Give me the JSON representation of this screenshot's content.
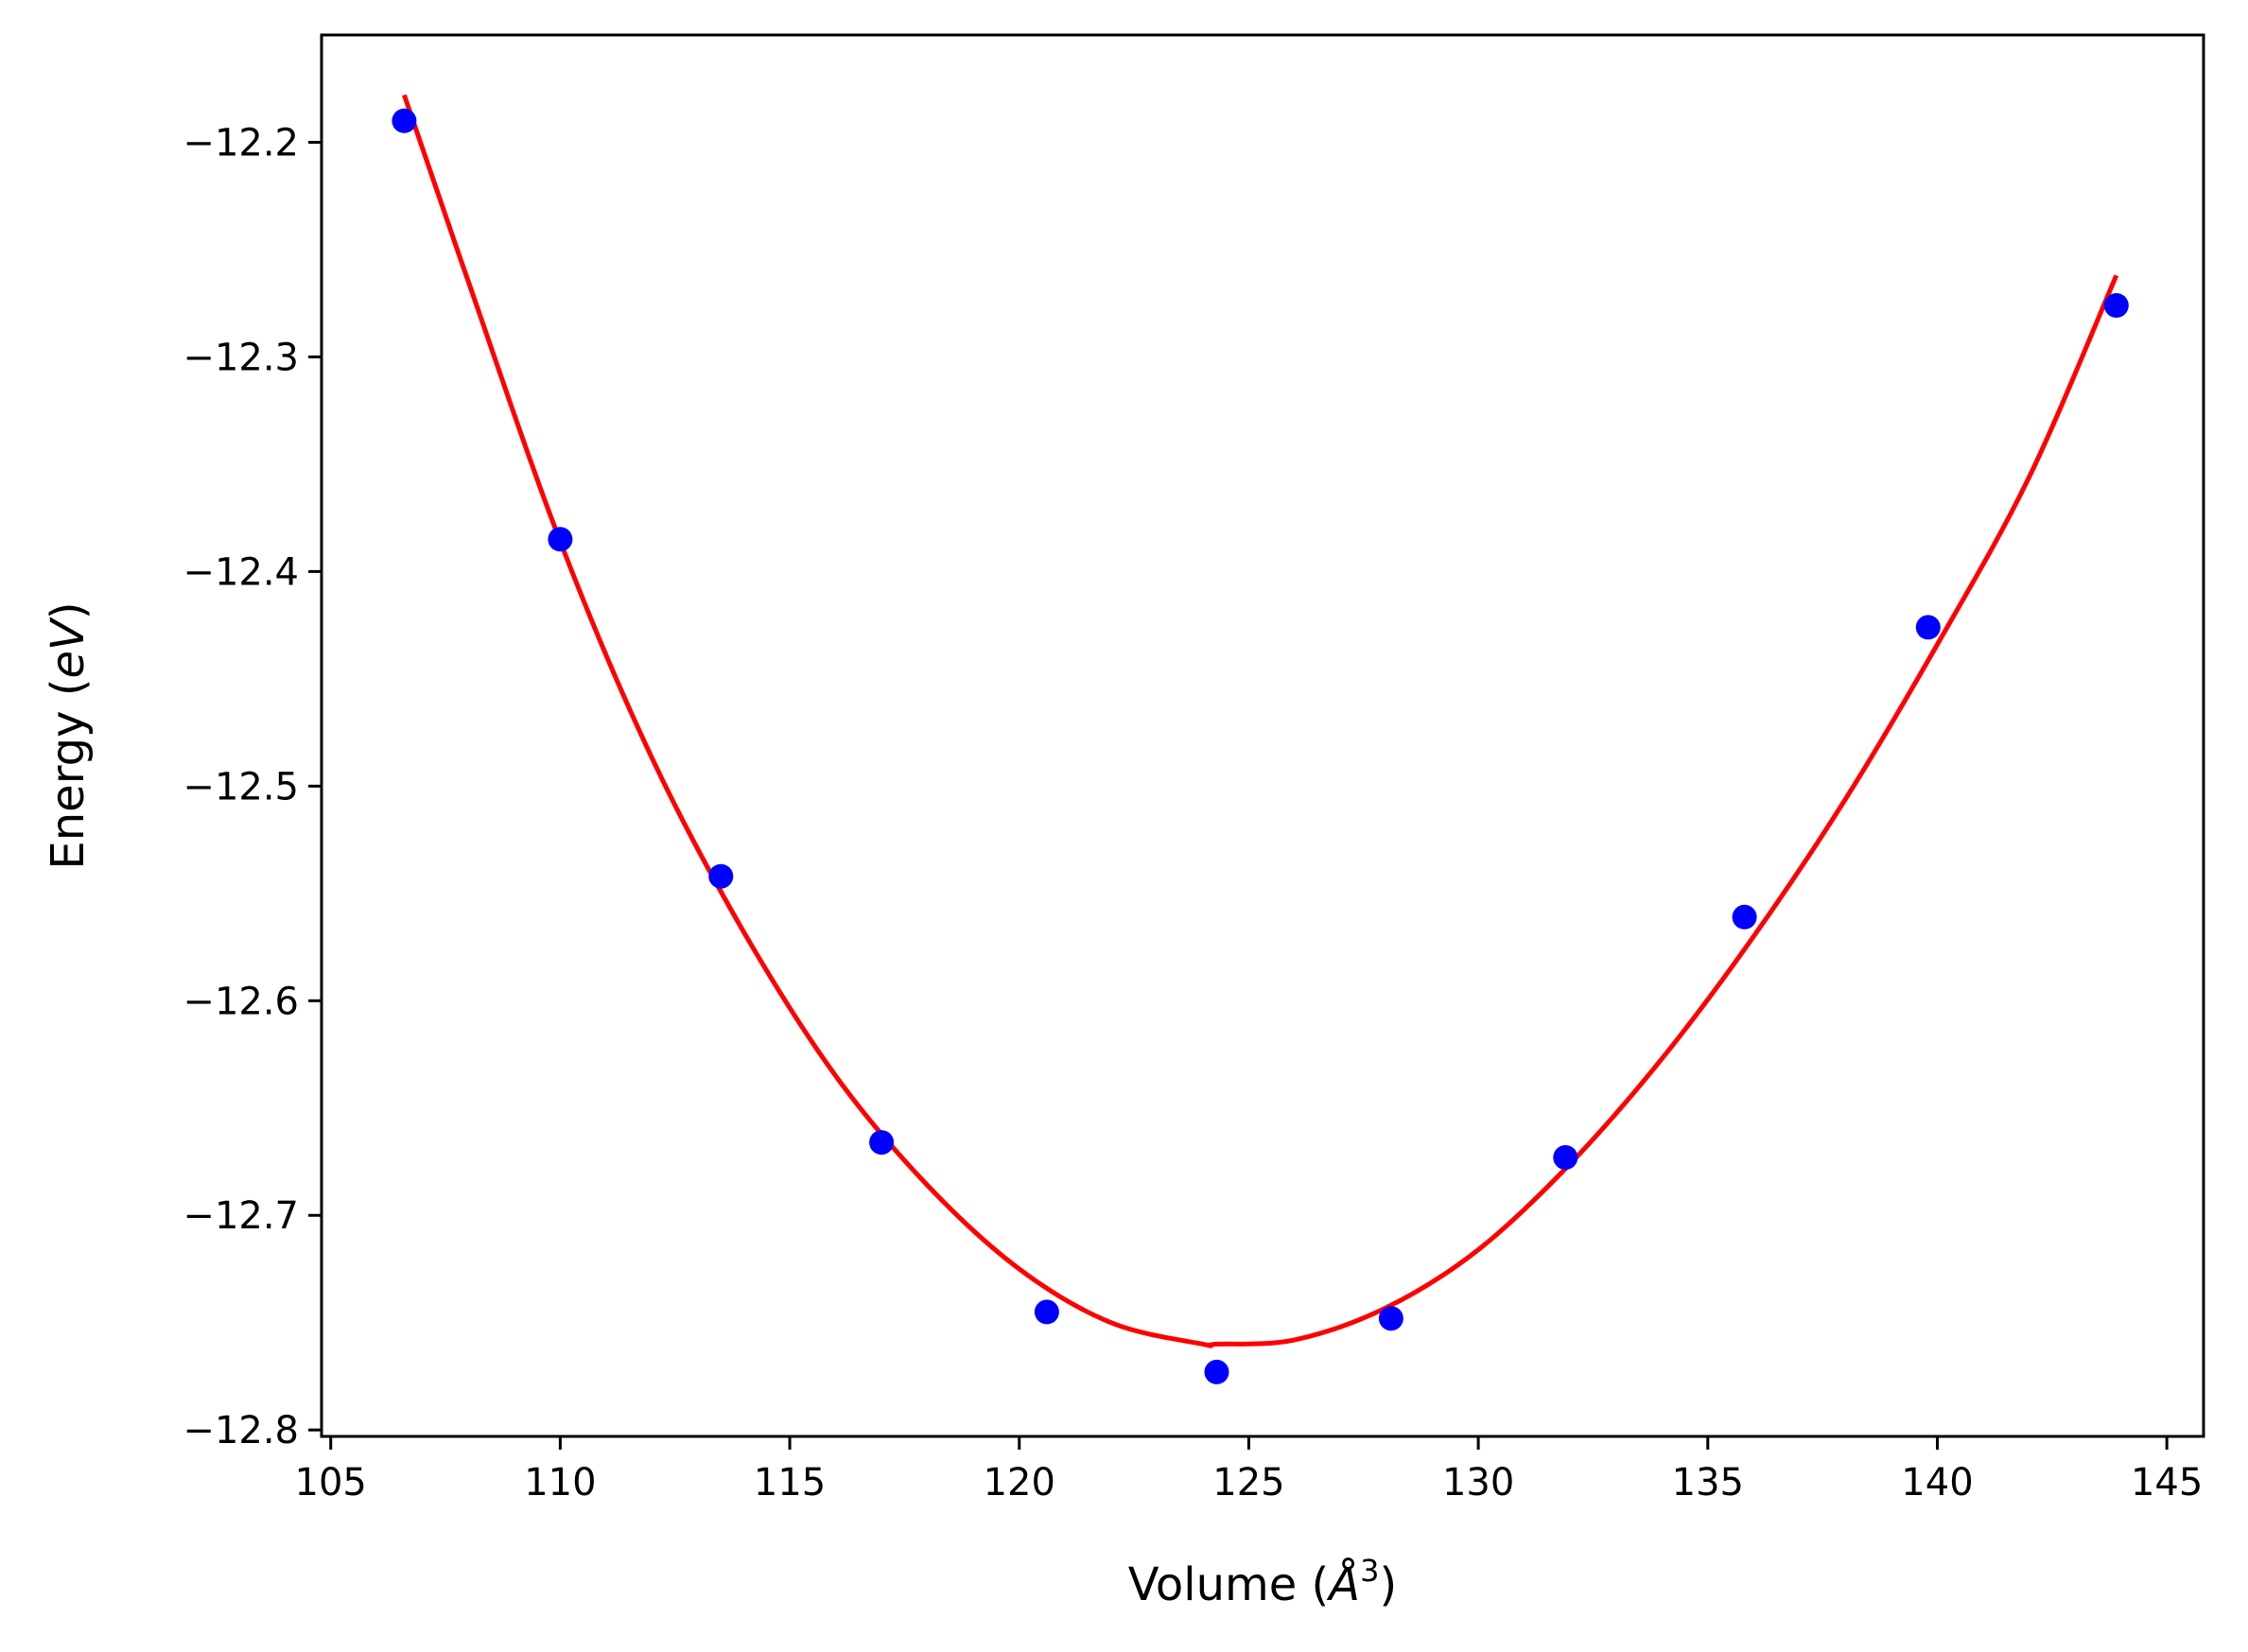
{
  "chart_data": {
    "type": "scatter",
    "xlabel": "Volume (Å³)",
    "xlabel_parts": {
      "prefix": "Volume (",
      "unit_symbol": "Å",
      "unit_power": "3",
      "suffix": ")"
    },
    "ylabel": "Energy (eV)",
    "ylabel_parts": {
      "prefix": "Energy (",
      "unit": "eV",
      "suffix": ")"
    },
    "xlim": [
      104.8,
      145.8
    ],
    "ylim": [
      -12.803,
      -12.15
    ],
    "xticks": [
      105,
      110,
      115,
      120,
      125,
      130,
      135,
      140,
      145
    ],
    "xtick_labels": [
      "105",
      "110",
      "115",
      "120",
      "125",
      "130",
      "135",
      "140",
      "145"
    ],
    "yticks": [
      -12.2,
      -12.3,
      -12.4,
      -12.5,
      -12.6,
      -12.7,
      -12.8
    ],
    "ytick_labels": [
      "−12.2",
      "−12.3",
      "−12.4",
      "−12.5",
      "−12.6",
      "−12.7",
      "−12.8"
    ],
    "grid": false,
    "legend": "none",
    "series": [
      {
        "kind": "points",
        "color": "#0000ff",
        "x": [
          106.6,
          110.0,
          113.5,
          117.0,
          120.6,
          124.3,
          128.1,
          131.9,
          135.8,
          139.8,
          143.9
        ],
        "y": [
          -12.19,
          -12.385,
          -12.542,
          -12.666,
          -12.745,
          -12.773,
          -12.748,
          -12.673,
          -12.561,
          -12.426,
          -12.276
        ]
      },
      {
        "kind": "fit-line",
        "color": "#ff0000",
        "x": [
          106.6,
          108.0,
          110.0,
          112.0,
          114.0,
          116.0,
          118.0,
          120.0,
          122.0,
          124.0,
          124.3,
          126.0,
          128.0,
          130.0,
          132.0,
          134.0,
          136.0,
          138.0,
          140.0,
          142.0,
          143.9
        ],
        "y": [
          -12.178,
          -12.265,
          -12.386,
          -12.487,
          -12.568,
          -12.635,
          -12.686,
          -12.725,
          -12.75,
          -12.76,
          -12.76,
          -12.758,
          -12.743,
          -12.716,
          -12.676,
          -12.627,
          -12.57,
          -12.506,
          -12.434,
          -12.356,
          -12.262
        ]
      }
    ]
  }
}
